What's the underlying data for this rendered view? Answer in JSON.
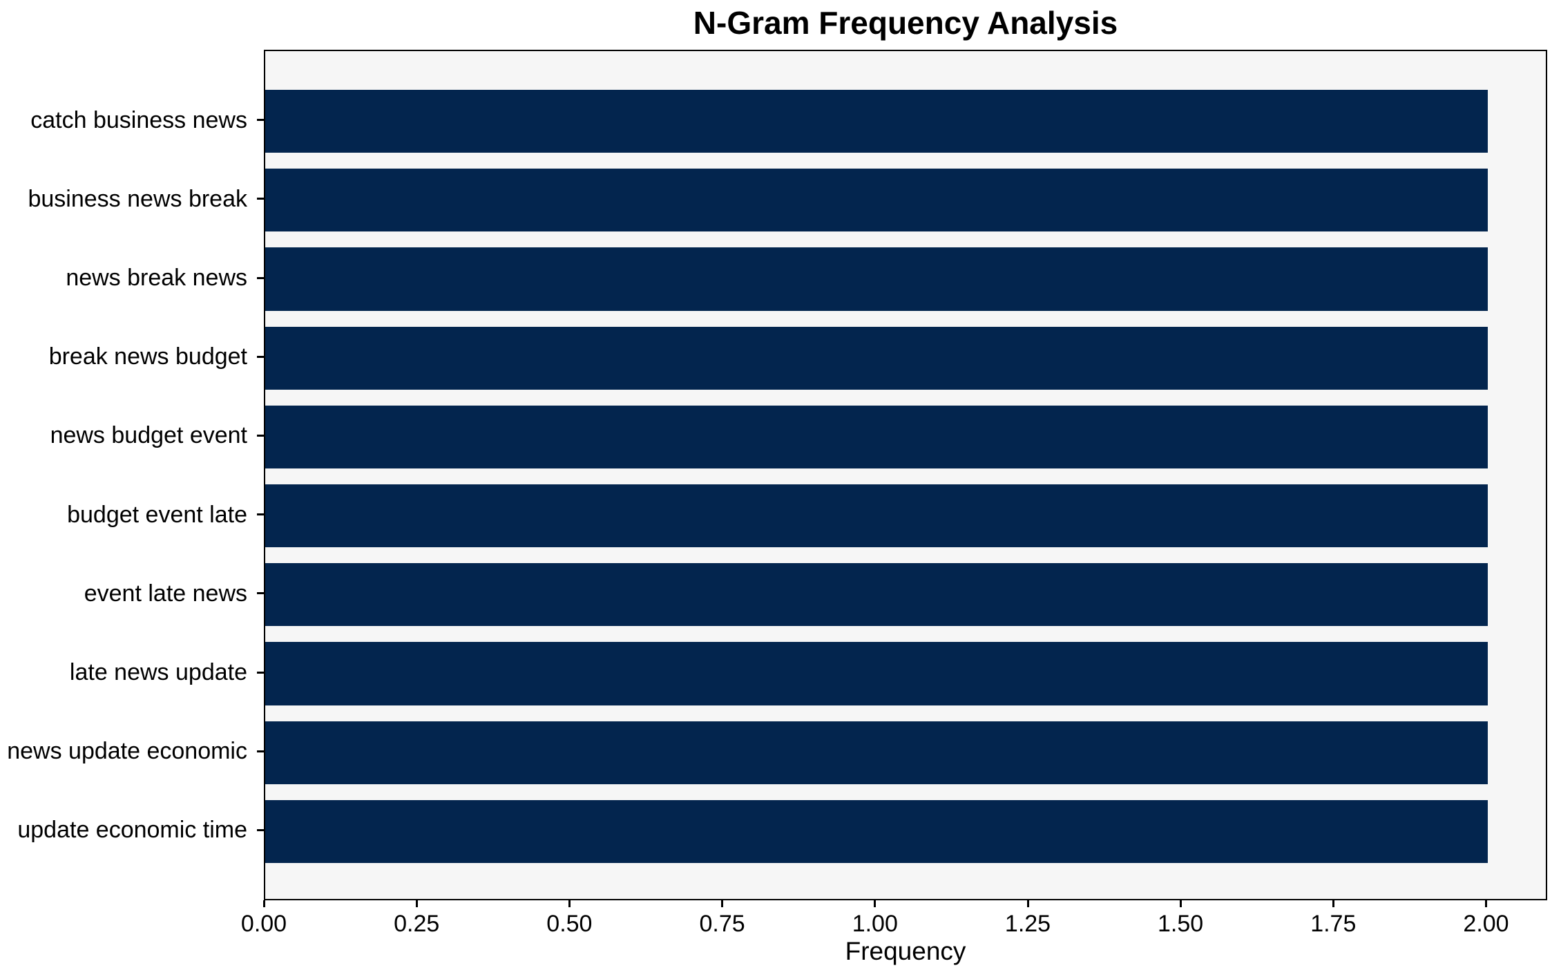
{
  "chart_data": {
    "type": "bar",
    "orientation": "horizontal",
    "title": "N-Gram Frequency Analysis",
    "xlabel": "Frequency",
    "ylabel": "",
    "categories": [
      "catch business news",
      "business news break",
      "news break news",
      "break news budget",
      "news budget event",
      "budget event late",
      "event late news",
      "late news update",
      "news update economic",
      "update economic time"
    ],
    "values": [
      2,
      2,
      2,
      2,
      2,
      2,
      2,
      2,
      2,
      2
    ],
    "xlim": [
      0,
      2.1
    ],
    "xtick_values": [
      0.0,
      0.25,
      0.5,
      0.75,
      1.0,
      1.25,
      1.5,
      1.75,
      2.0
    ],
    "xtick_labels": [
      "0.00",
      "0.25",
      "0.50",
      "0.75",
      "1.00",
      "1.25",
      "1.50",
      "1.75",
      "2.00"
    ],
    "bar_height_fraction": 0.8,
    "grid": false,
    "legend_position": "none",
    "colors": {
      "bar": "#03254e",
      "plot_background": "#f6f6f6",
      "figure_background": "#ffffff",
      "axis": "#000000",
      "text": "#000000"
    }
  }
}
